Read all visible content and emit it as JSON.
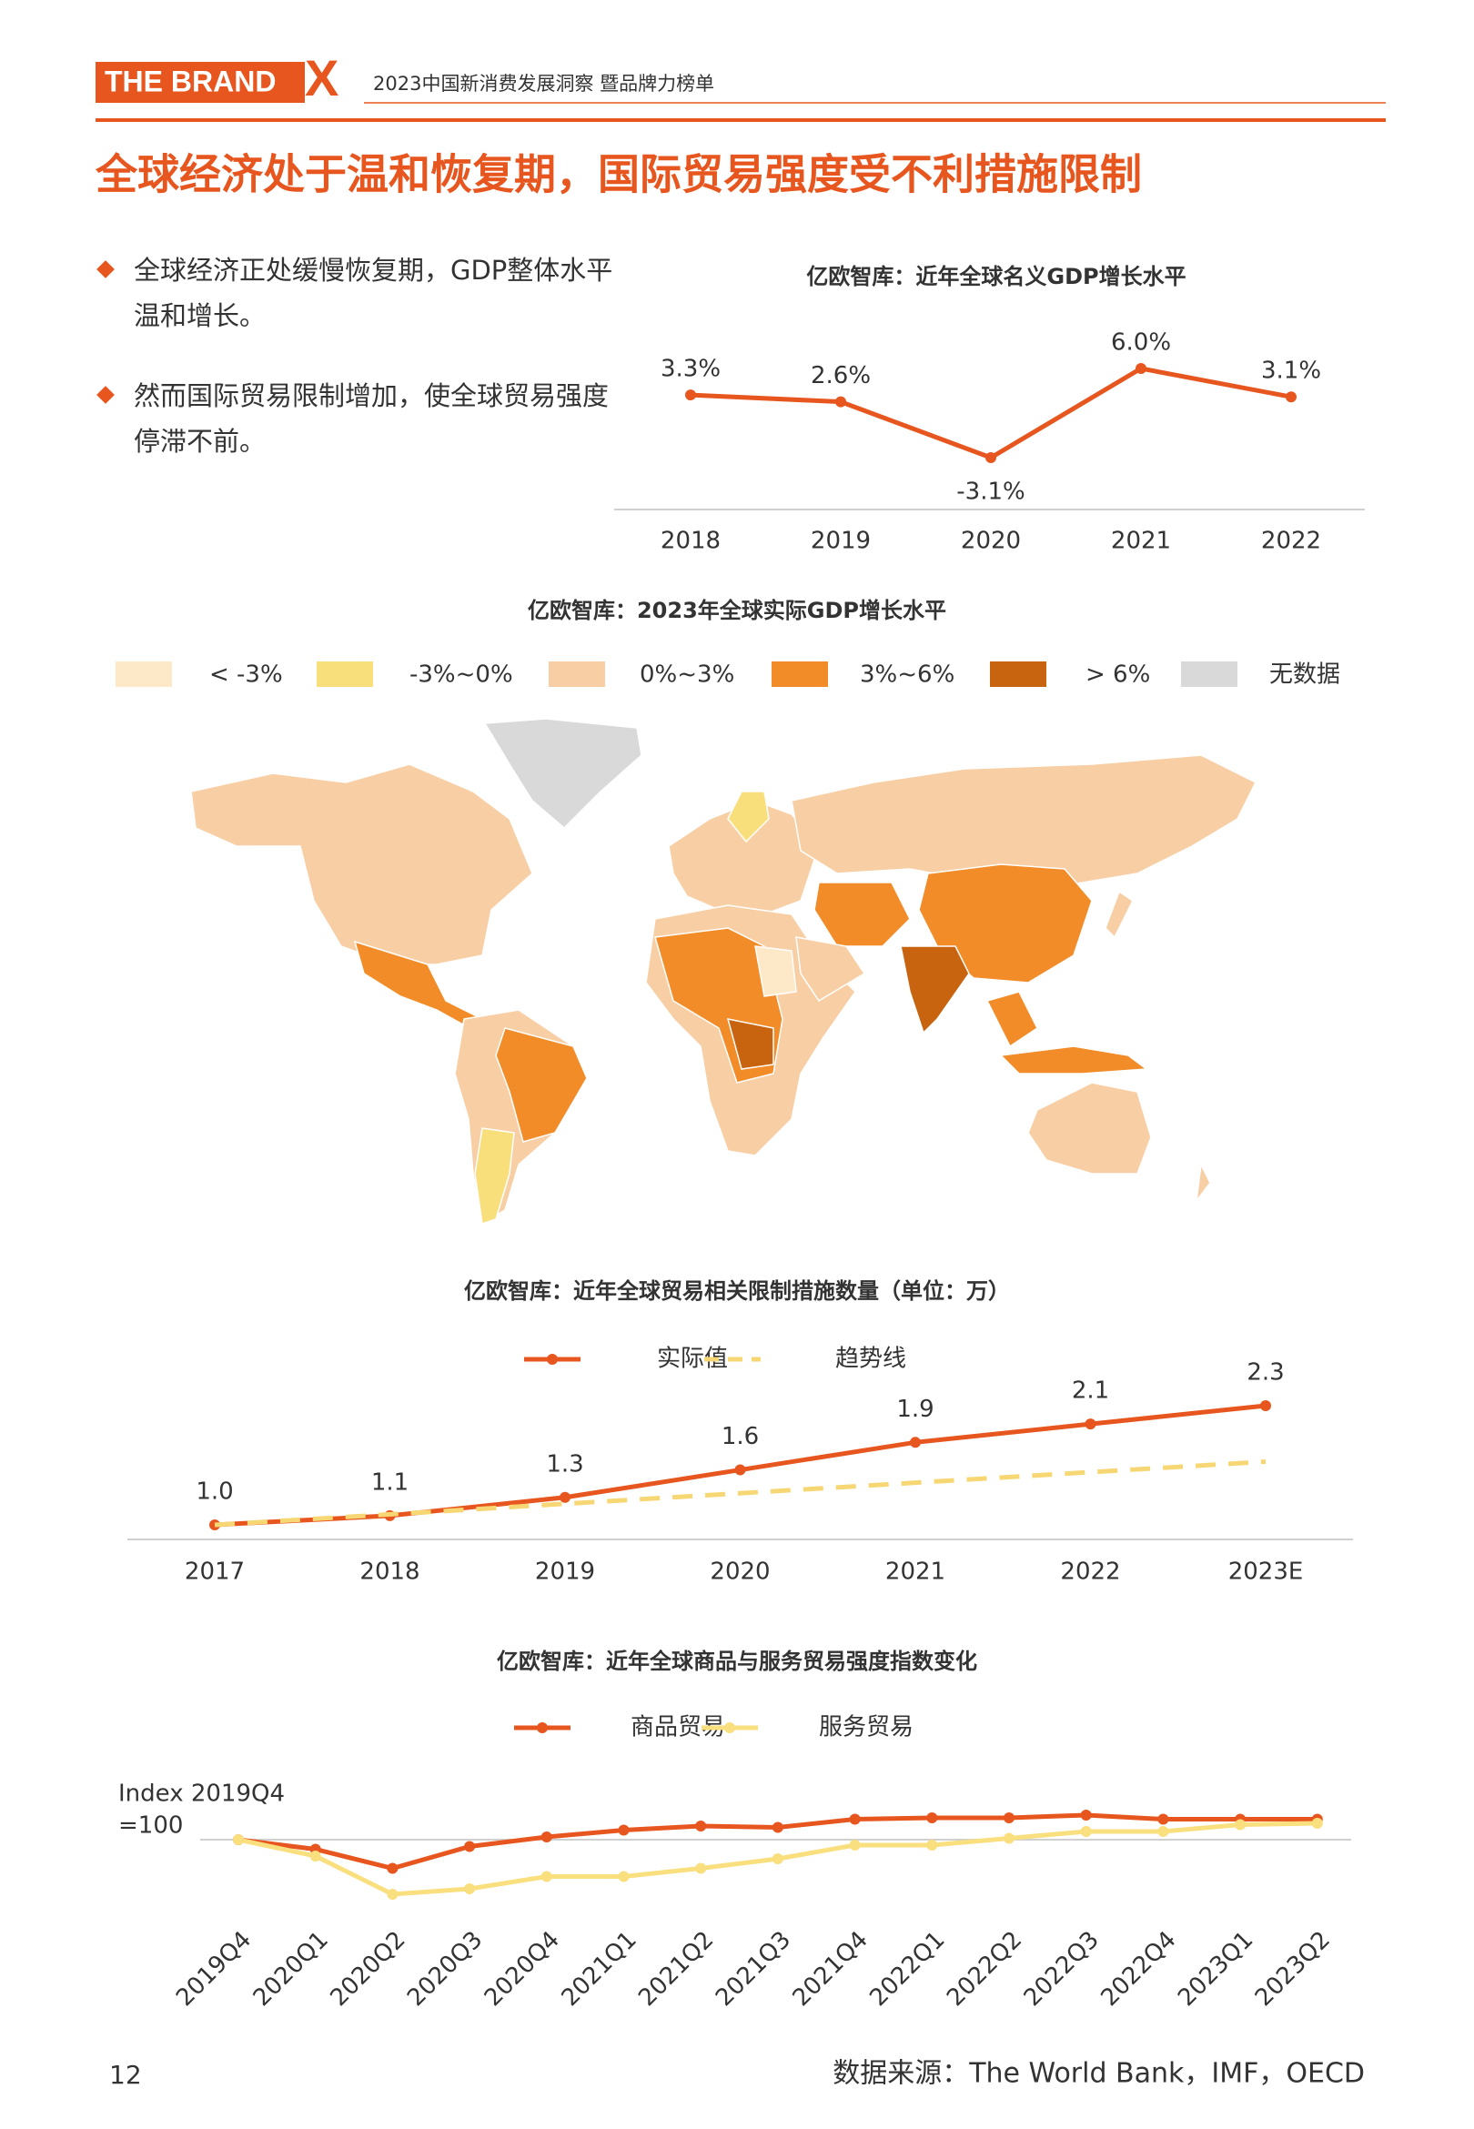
{
  "header": {
    "logo": "THE BRAND",
    "logo_mark": "X",
    "subtitle": "2023中国新消费发展洞察 暨品牌力榜单"
  },
  "title": "全球经济处于温和恢复期，国际贸易强度受不利措施限制",
  "bullets": [
    "全球经济正处缓慢恢复期，GDP整体水平温和增长。",
    "然而国际贸易限制增加，使全球贸易强度停滞不前。"
  ],
  "map": {
    "title": "亿欧智库：2023年全球实际GDP增长水平",
    "legend": [
      {
        "label": "< -3%",
        "color": "#fde8c8"
      },
      {
        "label": "-3%~0%",
        "color": "#f8df7c"
      },
      {
        "label": "0%~3%",
        "color": "#f8cfa5"
      },
      {
        "label": "3%~6%",
        "color": "#f28c28"
      },
      {
        "label": "> 6%",
        "color": "#c8640f"
      },
      {
        "label": "无数据",
        "color": "#d9d9d9"
      }
    ]
  },
  "chart_data": [
    {
      "type": "line",
      "title": "亿欧智库：近年全球名义GDP增长水平",
      "categories": [
        "2018",
        "2019",
        "2020",
        "2021",
        "2022"
      ],
      "values": [
        3.3,
        2.6,
        -3.1,
        6.0,
        3.1
      ],
      "value_labels": [
        "3.3%",
        "2.6%",
        "-3.1%",
        "6.0%",
        "3.1%"
      ],
      "color": "#e8561f"
    },
    {
      "type": "line",
      "title": "亿欧智库：近年全球贸易相关限制措施数量（单位：万）",
      "categories": [
        "2017",
        "2018",
        "2019",
        "2020",
        "2021",
        "2022",
        "2023E"
      ],
      "series": [
        {
          "name": "实际值",
          "color": "#e8561f",
          "values": [
            1.0,
            1.1,
            1.3,
            1.6,
            1.9,
            2.1,
            2.3
          ],
          "value_labels": [
            "1.0",
            "1.1",
            "1.3",
            "1.6",
            "1.9",
            "2.1",
            "2.3"
          ]
        },
        {
          "name": "趋势线",
          "color": "#f7d774",
          "dashed": true,
          "values": [
            1.0,
            1.115,
            1.23,
            1.345,
            1.46,
            1.575,
            1.69
          ]
        }
      ]
    },
    {
      "type": "line",
      "title": "亿欧智库：近年全球商品与服务贸易强度指数变化",
      "y_label": [
        "Index 2019Q4",
        "=100"
      ],
      "baseline": 100,
      "categories": [
        "2019Q4",
        "2020Q1",
        "2020Q2",
        "2020Q3",
        "2020Q4",
        "2021Q1",
        "2021Q2",
        "2021Q3",
        "2021Q4",
        "2022Q1",
        "2022Q2",
        "2022Q3",
        "2022Q4",
        "2023Q1",
        "2023Q2"
      ],
      "series": [
        {
          "name": "商品贸易",
          "color": "#e8561f",
          "values": [
            100,
            96.5,
            89.5,
            97.5,
            101,
            103.5,
            105,
            104.5,
            107.5,
            108,
            108,
            109,
            107.5,
            107.5,
            107.5
          ]
        },
        {
          "name": "服务贸易",
          "color": "#f9df7e",
          "values": [
            100,
            94,
            80,
            82,
            86.5,
            86.5,
            89.5,
            93,
            98,
            98,
            100.5,
            103,
            103,
            105.5,
            106
          ]
        }
      ]
    }
  ],
  "footer": {
    "page": "12",
    "source": "数据来源：The World Bank，IMF，OECD"
  }
}
